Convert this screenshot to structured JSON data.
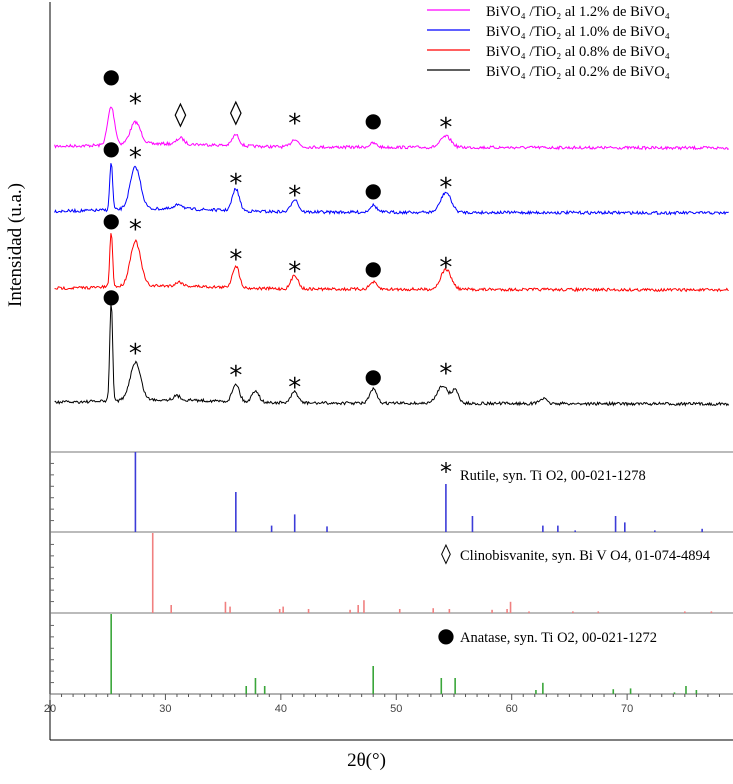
{
  "chart_data": {
    "type": "line",
    "xlabel": "2θ(°)",
    "ylabel": "Intensidad (u.a.)",
    "xlim": [
      20,
      79
    ],
    "x_ticks": [
      "20",
      "30",
      "40",
      "50",
      "60",
      "70"
    ],
    "legend_position": "top-right",
    "series": [
      {
        "name": "BiVO₄ /TiO₂ al 1.2% de BiVO₄",
        "color": "#ff00ff",
        "peaks": [
          {
            "x": 25.3,
            "h": 0.38
          },
          {
            "x": 27.4,
            "h": 0.22
          },
          {
            "x": 31.3,
            "h": 0.06
          },
          {
            "x": 36.1,
            "h": 0.11
          },
          {
            "x": 41.2,
            "h": 0.08
          },
          {
            "x": 48.0,
            "h": 0.04
          },
          {
            "x": 54.3,
            "h": 0.11
          }
        ]
      },
      {
        "name": "BiVO₄ /TiO₂ al 1.0% de BiVO₄",
        "color": "#0000ff",
        "peaks": [
          {
            "x": 25.3,
            "h": 0.48
          },
          {
            "x": 27.4,
            "h": 0.42
          },
          {
            "x": 31.2,
            "h": 0.05
          },
          {
            "x": 36.1,
            "h": 0.22
          },
          {
            "x": 41.2,
            "h": 0.13
          },
          {
            "x": 48.0,
            "h": 0.07
          },
          {
            "x": 54.3,
            "h": 0.2
          }
        ]
      },
      {
        "name": "BiVO₄ /TiO₂ al 0.8% de BiVO₄",
        "color": "#ff0000",
        "peaks": [
          {
            "x": 25.3,
            "h": 0.55
          },
          {
            "x": 27.4,
            "h": 0.45
          },
          {
            "x": 31.2,
            "h": 0.04
          },
          {
            "x": 36.1,
            "h": 0.22
          },
          {
            "x": 41.2,
            "h": 0.14
          },
          {
            "x": 48.0,
            "h": 0.07
          },
          {
            "x": 54.3,
            "h": 0.2
          }
        ]
      },
      {
        "name": "BiVO₄ /TiO₂ al 0.2% de BiVO₄",
        "color": "#000000",
        "peaks": [
          {
            "x": 25.3,
            "h": 1.0
          },
          {
            "x": 27.4,
            "h": 0.38
          },
          {
            "x": 31.0,
            "h": 0.04
          },
          {
            "x": 36.1,
            "h": 0.18
          },
          {
            "x": 37.8,
            "h": 0.12
          },
          {
            "x": 41.2,
            "h": 0.11
          },
          {
            "x": 48.0,
            "h": 0.14
          },
          {
            "x": 54.0,
            "h": 0.18
          },
          {
            "x": 55.1,
            "h": 0.13
          },
          {
            "x": 62.7,
            "h": 0.05
          }
        ]
      }
    ],
    "annotations": [
      {
        "series": 0,
        "symbol": "●",
        "x": 25.3
      },
      {
        "series": 0,
        "symbol": "*",
        "x": 27.4
      },
      {
        "series": 0,
        "symbol": "◊",
        "x": 31.3
      },
      {
        "series": 0,
        "symbol": "◊",
        "x": 36.1
      },
      {
        "series": 0,
        "symbol": "*",
        "x": 41.2
      },
      {
        "series": 0,
        "symbol": "●",
        "x": 48.0
      },
      {
        "series": 0,
        "symbol": "*",
        "x": 54.3
      },
      {
        "series": 1,
        "symbol": "●",
        "x": 25.3
      },
      {
        "series": 1,
        "symbol": "*",
        "x": 27.4
      },
      {
        "series": 1,
        "symbol": "*",
        "x": 36.1
      },
      {
        "series": 1,
        "symbol": "*",
        "x": 41.2
      },
      {
        "series": 1,
        "symbol": "●",
        "x": 48.0
      },
      {
        "series": 1,
        "symbol": "*",
        "x": 54.3
      },
      {
        "series": 2,
        "symbol": "●",
        "x": 25.3
      },
      {
        "series": 2,
        "symbol": "*",
        "x": 27.4
      },
      {
        "series": 2,
        "symbol": "*",
        "x": 36.1
      },
      {
        "series": 2,
        "symbol": "*",
        "x": 41.2
      },
      {
        "series": 2,
        "symbol": "●",
        "x": 48.0
      },
      {
        "series": 2,
        "symbol": "*",
        "x": 54.3
      },
      {
        "series": 3,
        "symbol": "●",
        "x": 25.3
      },
      {
        "series": 3,
        "symbol": "*",
        "x": 27.4
      },
      {
        "series": 3,
        "symbol": "*",
        "x": 36.1
      },
      {
        "series": 3,
        "symbol": "*",
        "x": 41.2
      },
      {
        "series": 3,
        "symbol": "●",
        "x": 48.0
      },
      {
        "series": 3,
        "symbol": "*",
        "x": 54.3
      }
    ],
    "reference_patterns": [
      {
        "symbol": "*",
        "label": "Rutile, syn. Ti O2, 00-021-1278",
        "color": "#3c3cd8",
        "lines": [
          {
            "x": 27.4,
            "h": 1.0
          },
          {
            "x": 36.1,
            "h": 0.5
          },
          {
            "x": 39.2,
            "h": 0.08
          },
          {
            "x": 41.2,
            "h": 0.22
          },
          {
            "x": 44.0,
            "h": 0.07
          },
          {
            "x": 54.3,
            "h": 0.6
          },
          {
            "x": 56.6,
            "h": 0.2
          },
          {
            "x": 62.7,
            "h": 0.08
          },
          {
            "x": 64.0,
            "h": 0.08
          },
          {
            "x": 65.5,
            "h": 0.02
          },
          {
            "x": 69.0,
            "h": 0.2
          },
          {
            "x": 69.8,
            "h": 0.12
          },
          {
            "x": 72.4,
            "h": 0.02
          },
          {
            "x": 76.5,
            "h": 0.04
          }
        ]
      },
      {
        "symbol": "◊",
        "label": "Clinobisvanite, syn. Bi V O4, 01-074-4894",
        "color": "#f08080",
        "lines": [
          {
            "x": 28.9,
            "h": 1.0
          },
          {
            "x": 30.5,
            "h": 0.1
          },
          {
            "x": 35.2,
            "h": 0.14
          },
          {
            "x": 35.6,
            "h": 0.08
          },
          {
            "x": 39.9,
            "h": 0.05
          },
          {
            "x": 40.2,
            "h": 0.08
          },
          {
            "x": 42.4,
            "h": 0.05
          },
          {
            "x": 46.0,
            "h": 0.04
          },
          {
            "x": 46.7,
            "h": 0.1
          },
          {
            "x": 47.2,
            "h": 0.16
          },
          {
            "x": 50.3,
            "h": 0.05
          },
          {
            "x": 53.2,
            "h": 0.06
          },
          {
            "x": 54.6,
            "h": 0.05
          },
          {
            "x": 58.3,
            "h": 0.04
          },
          {
            "x": 59.6,
            "h": 0.05
          },
          {
            "x": 59.9,
            "h": 0.14
          },
          {
            "x": 61.5,
            "h": 0.02
          },
          {
            "x": 65.3,
            "h": 0.02
          },
          {
            "x": 67.5,
            "h": 0.02
          },
          {
            "x": 75.0,
            "h": 0.02
          },
          {
            "x": 77.3,
            "h": 0.02
          }
        ]
      },
      {
        "symbol": "●",
        "label": "Anatase, syn. Ti O2, 00-021-1272",
        "color": "#3aa63a",
        "lines": [
          {
            "x": 25.3,
            "h": 1.0
          },
          {
            "x": 37.0,
            "h": 0.1
          },
          {
            "x": 37.8,
            "h": 0.2
          },
          {
            "x": 38.6,
            "h": 0.1
          },
          {
            "x": 48.0,
            "h": 0.35
          },
          {
            "x": 53.9,
            "h": 0.2
          },
          {
            "x": 55.1,
            "h": 0.2
          },
          {
            "x": 62.1,
            "h": 0.05
          },
          {
            "x": 62.7,
            "h": 0.14
          },
          {
            "x": 68.8,
            "h": 0.06
          },
          {
            "x": 70.3,
            "h": 0.07
          },
          {
            "x": 74.1,
            "h": 0.02
          },
          {
            "x": 75.1,
            "h": 0.1
          },
          {
            "x": 76.0,
            "h": 0.05
          }
        ]
      }
    ]
  }
}
